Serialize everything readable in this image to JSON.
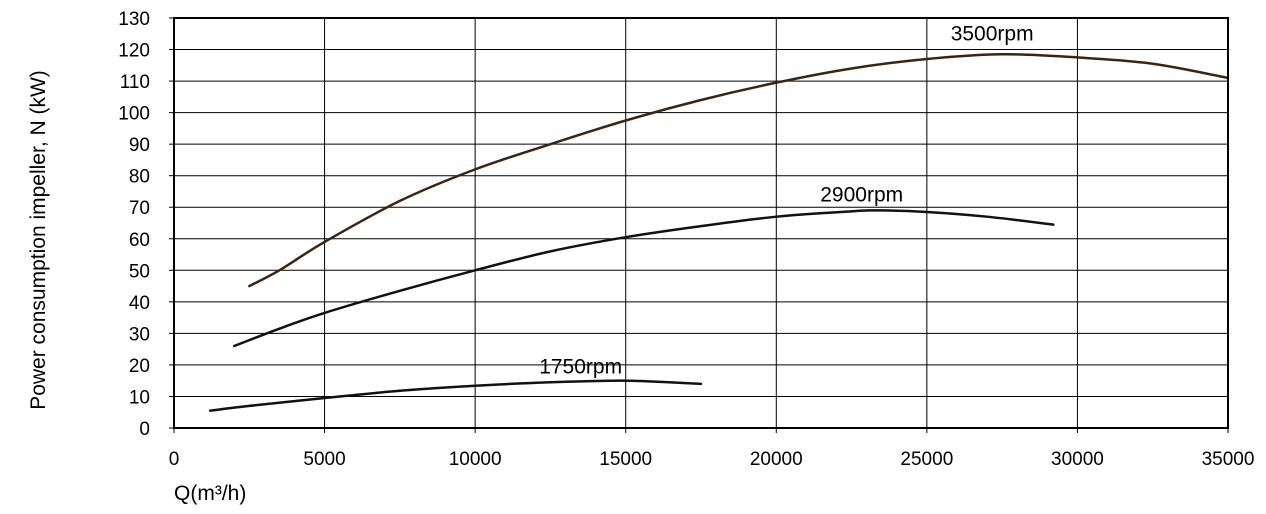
{
  "chart_data": {
    "type": "line",
    "xlabel": "Q(m³/h)",
    "ylabel": "Power consumption impeller, N (kW)",
    "xlim": [
      0,
      35000
    ],
    "ylim": [
      0,
      130
    ],
    "x_ticks": [
      0,
      5000,
      10000,
      15000,
      20000,
      25000,
      30000,
      35000
    ],
    "y_ticks": [
      0,
      10,
      20,
      30,
      40,
      50,
      60,
      70,
      80,
      90,
      100,
      110,
      120,
      130
    ],
    "grid": true,
    "series": [
      {
        "name": "3500rpm",
        "color": "#3b2510",
        "points": [
          [
            2500,
            45
          ],
          [
            3500,
            50
          ],
          [
            5000,
            59
          ],
          [
            7500,
            72
          ],
          [
            10000,
            82
          ],
          [
            12500,
            90
          ],
          [
            15000,
            97.5
          ],
          [
            17500,
            104
          ],
          [
            20000,
            109.5
          ],
          [
            22500,
            114
          ],
          [
            25000,
            117
          ],
          [
            27500,
            118.5
          ],
          [
            30000,
            117.5
          ],
          [
            32500,
            115.5
          ],
          [
            35000,
            111
          ]
        ]
      },
      {
        "name": "2900rpm",
        "color": "#111111",
        "points": [
          [
            2000,
            26
          ],
          [
            3500,
            31.5
          ],
          [
            5000,
            36.5
          ],
          [
            7500,
            43.5
          ],
          [
            10000,
            50
          ],
          [
            12500,
            56
          ],
          [
            15000,
            60.5
          ],
          [
            17500,
            64
          ],
          [
            20000,
            67
          ],
          [
            22500,
            68.7
          ],
          [
            23500,
            69
          ],
          [
            25000,
            68.5
          ],
          [
            27000,
            67
          ],
          [
            29200,
            64.5
          ]
        ]
      },
      {
        "name": "1750rpm",
        "color": "#111111",
        "points": [
          [
            1200,
            5.5
          ],
          [
            2500,
            7
          ],
          [
            5000,
            9.5
          ],
          [
            7500,
            11.8
          ],
          [
            10000,
            13.4
          ],
          [
            12500,
            14.5
          ],
          [
            14500,
            15
          ],
          [
            15500,
            14.9
          ],
          [
            17500,
            14
          ]
        ]
      }
    ]
  }
}
